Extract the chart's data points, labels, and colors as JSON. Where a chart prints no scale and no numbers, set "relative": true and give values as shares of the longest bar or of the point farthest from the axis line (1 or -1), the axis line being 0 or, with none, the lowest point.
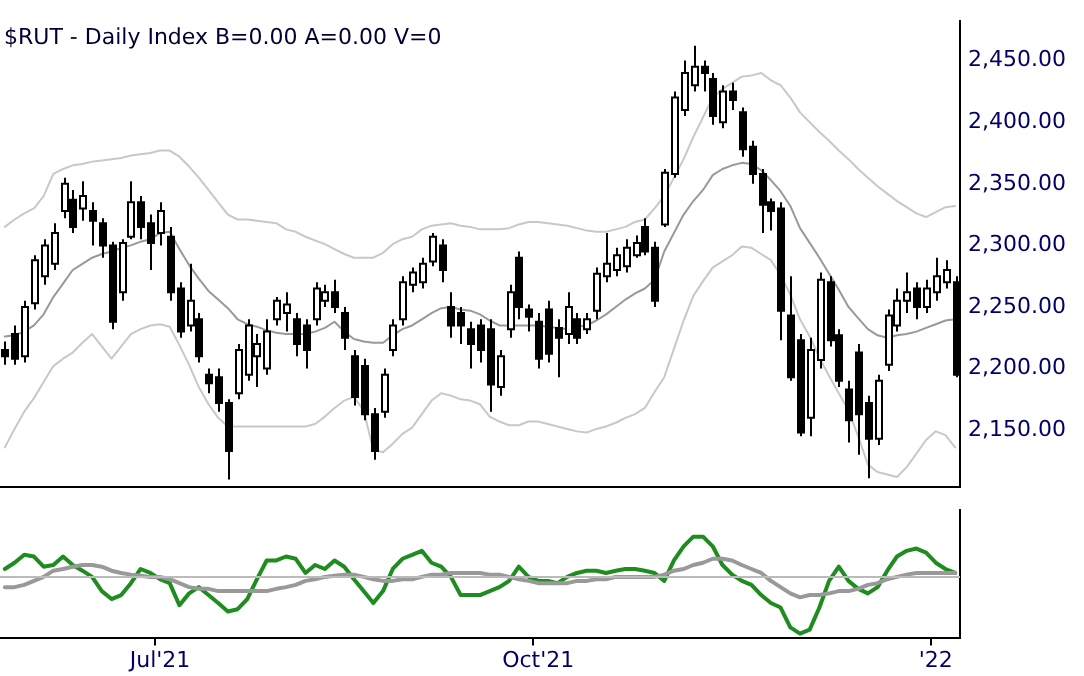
{
  "chart_data": [
    {
      "type": "candlestick",
      "title": "$RUT - Daily Index B=0.00 A=0.00 V=0",
      "categories": [
        null,
        null,
        null,
        null,
        null,
        null,
        null,
        null,
        null,
        null,
        null,
        null,
        null,
        null,
        null,
        null,
        null,
        null,
        null,
        null,
        null,
        null,
        null,
        null,
        null,
        null,
        null,
        null,
        null,
        null,
        null,
        null,
        null,
        null,
        null,
        null,
        null,
        null,
        null,
        null,
        null,
        null,
        null,
        null,
        null,
        null,
        null,
        null,
        null,
        null,
        null,
        null,
        null,
        null,
        null,
        null,
        null,
        null,
        null,
        null,
        null,
        null,
        null,
        null,
        null,
        null,
        null,
        null,
        null,
        null,
        null,
        null,
        null,
        null,
        null,
        null,
        null,
        null,
        null,
        null,
        null,
        null,
        null,
        null,
        null,
        null,
        null,
        null,
        null,
        null,
        null,
        null,
        null,
        null,
        null,
        null,
        null,
        null,
        null
      ],
      "ohlc": [
        [
          2215,
          2222,
          2203,
          2210
        ],
        [
          2228,
          2235,
          2203,
          2208
        ],
        [
          2210,
          2255,
          2205,
          2250
        ],
        [
          2253,
          2292,
          2248,
          2288
        ],
        [
          2275,
          2305,
          2268,
          2300
        ],
        [
          2285,
          2318,
          2280,
          2310
        ],
        [
          2328,
          2355,
          2322,
          2350
        ],
        [
          2337,
          2345,
          2310,
          2315
        ],
        [
          2330,
          2352,
          2320,
          2340
        ],
        [
          2328,
          2335,
          2300,
          2320
        ],
        [
          2318,
          2322,
          2290,
          2300
        ],
        [
          2300,
          2303,
          2232,
          2238
        ],
        [
          2262,
          2305,
          2255,
          2302
        ],
        [
          2307,
          2352,
          2305,
          2335
        ],
        [
          2335,
          2340,
          2305,
          2315
        ],
        [
          2318,
          2325,
          2280,
          2302
        ],
        [
          2310,
          2335,
          2300,
          2328
        ],
        [
          2307,
          2315,
          2255,
          2262
        ],
        [
          2265,
          2270,
          2225,
          2230
        ],
        [
          2235,
          2285,
          2230,
          2255
        ],
        [
          2240,
          2245,
          2205,
          2210
        ],
        [
          2195,
          2200,
          2180,
          2188
        ],
        [
          2193,
          2200,
          2165,
          2172
        ],
        [
          2172,
          2175,
          2110,
          2133
        ],
        [
          2180,
          2220,
          2175,
          2215
        ],
        [
          2195,
          2240,
          2190,
          2235
        ],
        [
          2210,
          2228,
          2185,
          2220
        ],
        [
          2200,
          2240,
          2195,
          2230
        ],
        [
          2240,
          2258,
          2235,
          2255
        ],
        [
          2245,
          2262,
          2230,
          2252
        ],
        [
          2240,
          2245,
          2210,
          2220
        ],
        [
          2235,
          2240,
          2200,
          2215
        ],
        [
          2240,
          2270,
          2235,
          2265
        ],
        [
          2255,
          2268,
          2250,
          2262
        ],
        [
          2262,
          2272,
          2245,
          2250
        ],
        [
          2245,
          2250,
          2215,
          2225
        ],
        [
          2210,
          2215,
          2170,
          2177
        ],
        [
          2202,
          2208,
          2158,
          2163
        ],
        [
          2163,
          2168,
          2126,
          2133
        ],
        [
          2165,
          2200,
          2160,
          2195
        ],
        [
          2215,
          2240,
          2210,
          2235
        ],
        [
          2240,
          2275,
          2235,
          2270
        ],
        [
          2268,
          2282,
          2262,
          2278
        ],
        [
          2270,
          2290,
          2265,
          2285
        ],
        [
          2287,
          2310,
          2283,
          2307
        ],
        [
          2300,
          2305,
          2270,
          2280
        ],
        [
          2250,
          2262,
          2225,
          2235
        ],
        [
          2245,
          2250,
          2220,
          2235
        ],
        [
          2232,
          2238,
          2200,
          2220
        ],
        [
          2235,
          2240,
          2205,
          2215
        ],
        [
          2232,
          2240,
          2165,
          2187
        ],
        [
          2185,
          2215,
          2178,
          2210
        ],
        [
          2232,
          2268,
          2225,
          2262
        ],
        [
          2290,
          2295,
          2240,
          2250
        ],
        [
          2248,
          2252,
          2230,
          2242
        ],
        [
          2238,
          2245,
          2200,
          2208
        ],
        [
          2248,
          2255,
          2205,
          2212
        ],
        [
          2233,
          2240,
          2193,
          2225
        ],
        [
          2228,
          2262,
          2220,
          2250
        ],
        [
          2240,
          2245,
          2220,
          2225
        ],
        [
          2232,
          2245,
          2228,
          2240
        ],
        [
          2247,
          2282,
          2240,
          2277
        ],
        [
          2275,
          2310,
          2270,
          2285
        ],
        [
          2280,
          2298,
          2275,
          2292
        ],
        [
          2283,
          2305,
          2278,
          2298
        ],
        [
          2292,
          2308,
          2290,
          2302
        ],
        [
          2315,
          2322,
          2292,
          2295
        ],
        [
          2298,
          2303,
          2250,
          2255
        ],
        [
          2317,
          2362,
          2315,
          2359
        ],
        [
          2358,
          2425,
          2355,
          2420
        ],
        [
          2410,
          2450,
          2405,
          2440
        ],
        [
          2430,
          2462,
          2425,
          2445
        ],
        [
          2445,
          2450,
          2425,
          2440
        ],
        [
          2435,
          2440,
          2398,
          2405
        ],
        [
          2400,
          2430,
          2395,
          2425
        ],
        [
          2425,
          2432,
          2410,
          2418
        ],
        [
          2408,
          2412,
          2372,
          2378
        ],
        [
          2380,
          2385,
          2350,
          2358
        ],
        [
          2358,
          2362,
          2310,
          2333
        ],
        [
          2335,
          2338,
          2312,
          2328
        ],
        [
          2330,
          2335,
          2223,
          2247
        ],
        [
          2243,
          2275,
          2190,
          2193
        ],
        [
          2223,
          2228,
          2145,
          2148
        ],
        [
          2160,
          2225,
          2145,
          2215
        ],
        [
          2207,
          2278,
          2200,
          2272
        ],
        [
          2270,
          2275,
          2218,
          2223
        ],
        [
          2227,
          2232,
          2185,
          2190
        ],
        [
          2183,
          2190,
          2140,
          2158
        ],
        [
          2213,
          2220,
          2130,
          2163
        ],
        [
          2172,
          2178,
          2111,
          2143
        ],
        [
          2143,
          2195,
          2138,
          2190
        ],
        [
          2203,
          2248,
          2198,
          2243
        ],
        [
          2235,
          2265,
          2230,
          2255
        ],
        [
          2255,
          2278,
          2245,
          2262
        ],
        [
          2265,
          2270,
          2240,
          2250
        ],
        [
          2250,
          2272,
          2245,
          2265
        ],
        [
          2262,
          2290,
          2255,
          2275
        ],
        [
          2270,
          2288,
          2265,
          2280
        ],
        [
          2270,
          2275,
          2193,
          2195
        ]
      ],
      "series": [
        {
          "type": "line",
          "color": "#c8c8c8",
          "values": [
            2315,
            2321,
            2326,
            2330,
            2340,
            2358,
            2362,
            2365,
            2366,
            2368,
            2369,
            2370,
            2371,
            2373,
            2374,
            2375,
            2377,
            2377,
            2372,
            2364,
            2355,
            2345,
            2335,
            2325,
            2321,
            2321,
            2320,
            2319,
            2318,
            2313,
            2311,
            2307,
            2304,
            2301,
            2297,
            2293,
            2290,
            2290,
            2290,
            2294,
            2301,
            2305,
            2307,
            2313,
            2316,
            2317,
            2318,
            2316,
            2315,
            2313,
            2313,
            2313,
            2314,
            2317,
            2319,
            2319,
            2318,
            2317,
            2316,
            2314,
            2312,
            2311,
            2311,
            2313,
            2315,
            2319,
            2321,
            2330,
            2340,
            2355,
            2370,
            2388,
            2404,
            2420,
            2427,
            2432,
            2437,
            2438,
            2440,
            2434,
            2430,
            2420,
            2408,
            2400,
            2392,
            2385,
            2377,
            2370,
            2362,
            2355,
            2348,
            2342,
            2336,
            2331,
            2326,
            2323,
            2327,
            2331,
            2332
          ]
        },
        {
          "type": "line",
          "color": "#999999",
          "values": [
            2226,
            2227,
            2230,
            2235,
            2244,
            2258,
            2269,
            2280,
            2285,
            2290,
            2293,
            2295,
            2298,
            2300,
            2303,
            2305,
            2310,
            2311,
            2297,
            2284,
            2273,
            2263,
            2256,
            2249,
            2240,
            2236,
            2234,
            2231,
            2229,
            2228,
            2228,
            2228,
            2230,
            2233,
            2238,
            2230,
            2224,
            2222,
            2221,
            2221,
            2227,
            2232,
            2235,
            2240,
            2245,
            2249,
            2250,
            2248,
            2247,
            2244,
            2239,
            2235,
            2235,
            2235,
            2235,
            2235,
            2234,
            2233,
            2232,
            2234,
            2235,
            2239,
            2244,
            2250,
            2256,
            2261,
            2265,
            2272,
            2295,
            2310,
            2325,
            2336,
            2345,
            2357,
            2362,
            2365,
            2367,
            2366,
            2361,
            2353,
            2344,
            2332,
            2314,
            2302,
            2290,
            2277,
            2264,
            2250,
            2241,
            2232,
            2227,
            2225,
            2227,
            2228,
            2230,
            2233,
            2236,
            2239,
            2240
          ]
        },
        {
          "type": "line",
          "color": "#c8c8c8",
          "values": [
            2136,
            2151,
            2165,
            2176,
            2189,
            2202,
            2208,
            2213,
            2221,
            2228,
            2218,
            2208,
            2218,
            2228,
            2232,
            2235,
            2236,
            2234,
            2219,
            2203,
            2185,
            2171,
            2160,
            2153,
            2153,
            2153,
            2153,
            2153,
            2153,
            2153,
            2153,
            2153,
            2155,
            2161,
            2168,
            2174,
            2177,
            2166,
            2134,
            2132,
            2139,
            2147,
            2152,
            2163,
            2174,
            2180,
            2178,
            2175,
            2174,
            2171,
            2161,
            2157,
            2154,
            2154,
            2157,
            2157,
            2155,
            2153,
            2151,
            2149,
            2148,
            2151,
            2153,
            2156,
            2160,
            2163,
            2168,
            2181,
            2193,
            2216,
            2239,
            2259,
            2271,
            2282,
            2287,
            2292,
            2299,
            2298,
            2293,
            2288,
            2276,
            2260,
            2240,
            2226,
            2209,
            2194,
            2180,
            2166,
            2145,
            2122,
            2116,
            2114,
            2112,
            2120,
            2131,
            2142,
            2149,
            2146,
            2136
          ]
        }
      ],
      "ylim": [
        2104,
        2482
      ],
      "yticks": [
        {
          "value": 2150,
          "label": "2,150.00"
        },
        {
          "value": 2200,
          "label": "2,200.00"
        },
        {
          "value": 2250,
          "label": "2,250.00"
        },
        {
          "value": 2300,
          "label": "2,300.00"
        },
        {
          "value": 2350,
          "label": "2,350.00"
        },
        {
          "value": 2400,
          "label": "2,400.00"
        },
        {
          "value": 2450,
          "label": "2,450.00"
        }
      ],
      "tick_labels": "y"
    },
    {
      "type": "line",
      "relative": true,
      "tick_labels": "x",
      "categories": [
        null,
        null,
        null,
        null,
        null,
        null,
        null,
        null,
        null,
        null,
        null,
        null,
        null,
        null,
        null,
        null,
        "Jul'21",
        null,
        null,
        null,
        null,
        null,
        null,
        null,
        null,
        null,
        null,
        null,
        null,
        null,
        null,
        null,
        null,
        null,
        null,
        null,
        null,
        null,
        null,
        null,
        null,
        null,
        null,
        null,
        null,
        null,
        null,
        null,
        null,
        null,
        null,
        null,
        null,
        null,
        null,
        "Oct'21",
        null,
        null,
        null,
        null,
        null,
        null,
        null,
        null,
        null,
        null,
        null,
        null,
        null,
        null,
        null,
        null,
        null,
        null,
        null,
        null,
        null,
        null,
        null,
        null,
        null,
        null,
        null,
        null,
        null,
        null,
        null,
        null,
        null,
        null,
        null,
        null,
        null,
        null,
        null,
        null,
        "'22",
        null,
        null
      ],
      "series": [
        {
          "color": "#999999",
          "values": [
            -0.18,
            -0.18,
            -0.14,
            -0.07,
            0,
            0.11,
            0.14,
            0.18,
            0.21,
            0.21,
            0.18,
            0.11,
            0.07,
            0.04,
            0.02,
            0,
            0,
            -0.04,
            -0.11,
            -0.18,
            -0.21,
            -0.21,
            -0.25,
            -0.25,
            -0.25,
            -0.25,
            -0.25,
            -0.25,
            -0.21,
            -0.18,
            -0.14,
            -0.07,
            -0.04,
            0,
            0.02,
            0.04,
            0.04,
            0,
            -0.04,
            -0.07,
            -0.07,
            -0.04,
            -0.04,
            0,
            0.04,
            0.04,
            0.07,
            0.07,
            0.07,
            0.07,
            0.04,
            0.04,
            0,
            -0.04,
            -0.07,
            -0.11,
            -0.11,
            -0.11,
            -0.11,
            -0.07,
            -0.07,
            -0.04,
            -0.04,
            0,
            0,
            0,
            0,
            0,
            0.04,
            0.11,
            0.14,
            0.21,
            0.25,
            0.32,
            0.32,
            0.29,
            0.21,
            0.14,
            0.07,
            -0.07,
            -0.18,
            -0.29,
            -0.36,
            -0.32,
            -0.32,
            -0.29,
            -0.25,
            -0.25,
            -0.21,
            -0.14,
            -0.11,
            -0.04,
            0,
            0.04,
            0.07,
            0.07,
            0.07,
            0.07,
            0.07
          ]
        },
        {
          "color": "#1e8c1e",
          "values": [
            0.14,
            0.25,
            0.39,
            0.36,
            0.18,
            0.21,
            0.36,
            0.21,
            0.11,
            0,
            -0.25,
            -0.39,
            -0.32,
            -0.11,
            0.14,
            0.07,
            -0.04,
            -0.11,
            -0.5,
            -0.29,
            -0.18,
            -0.32,
            -0.46,
            -0.61,
            -0.57,
            -0.39,
            -0.04,
            0.29,
            0.29,
            0.36,
            0.32,
            0.07,
            0.21,
            0.14,
            0.29,
            0.18,
            -0.04,
            -0.25,
            -0.46,
            -0.25,
            0.14,
            0.32,
            0.39,
            0.46,
            0.25,
            0.18,
            0,
            -0.32,
            -0.32,
            -0.32,
            -0.25,
            -0.18,
            -0.07,
            0.18,
            0,
            -0.07,
            -0.07,
            -0.11,
            0,
            0.07,
            0.11,
            0.11,
            0.07,
            0.11,
            0.14,
            0.14,
            0.11,
            0.07,
            -0.07,
            0.29,
            0.54,
            0.71,
            0.71,
            0.54,
            0.21,
            0.04,
            -0.07,
            -0.14,
            -0.32,
            -0.46,
            -0.54,
            -0.89,
            -1,
            -0.93,
            -0.54,
            -0.07,
            0.18,
            -0.07,
            -0.21,
            -0.29,
            -0.18,
            0.11,
            0.36,
            0.46,
            0.5,
            0.43,
            0.25,
            0.14,
            0.07
          ]
        }
      ],
      "ref_lines": [
        {
          "axis": "y",
          "value": 0,
          "color": "#bbbbbb"
        }
      ]
    }
  ]
}
